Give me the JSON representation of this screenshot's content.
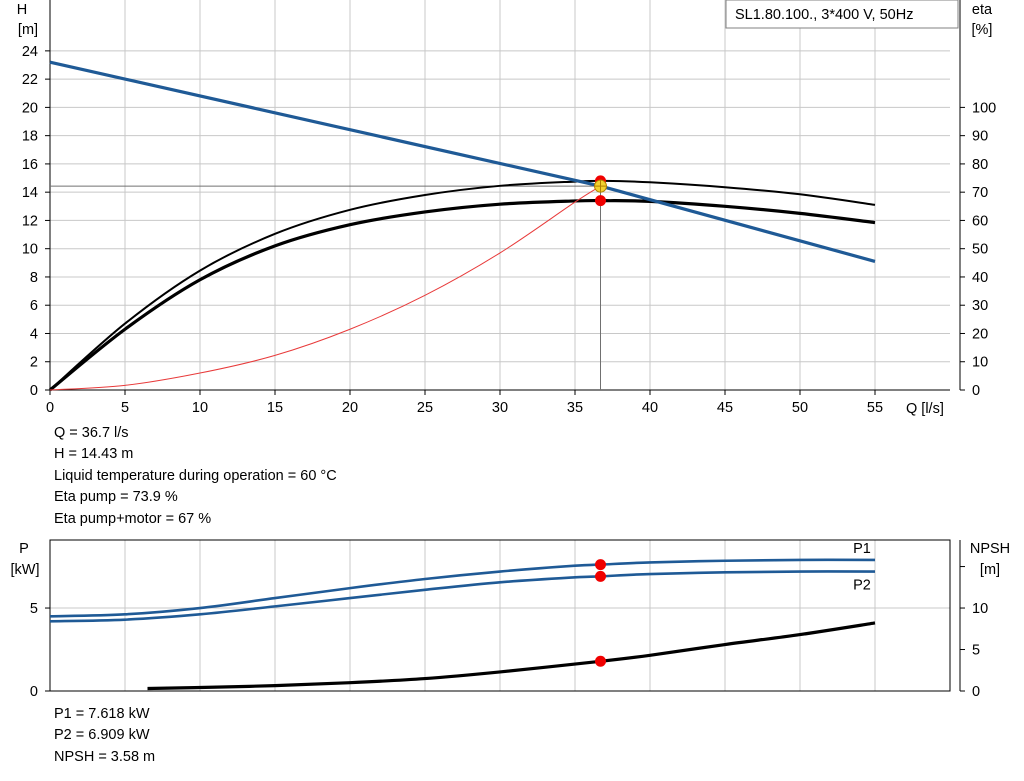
{
  "chart_data": [
    {
      "type": "line",
      "title": "SL1.80.100., 3*400 V, 50Hz",
      "xlabel": "Q [l/s]",
      "ylabel_left": [
        "H",
        "[m]"
      ],
      "ylabel_right": [
        "eta",
        "[%]"
      ],
      "x_ticks": [
        "0",
        "5",
        "10",
        "15",
        "20",
        "25",
        "30",
        "35",
        "40",
        "45",
        "50",
        "55"
      ],
      "y_left_ticks": [
        "0",
        "2",
        "4",
        "6",
        "8",
        "10",
        "12",
        "14",
        "16",
        "18",
        "20",
        "22",
        "24"
      ],
      "y_right_ticks": [
        "0",
        "10",
        "20",
        "30",
        "40",
        "50",
        "60",
        "70",
        "80",
        "90",
        "100"
      ],
      "xlim": [
        0,
        60
      ],
      "ylim_left": [
        0,
        27.6
      ],
      "ylim_right": [
        0,
        138
      ],
      "grid": true,
      "series": [
        {
          "role": "head_max",
          "color": "#000000",
          "x": [
            0,
            5,
            10,
            15,
            20,
            25,
            30,
            35,
            37,
            40,
            45,
            50,
            55
          ],
          "y": [
            0,
            4.7,
            8.45,
            11.05,
            12.75,
            13.8,
            14.45,
            14.75,
            14.8,
            14.7,
            14.35,
            13.85,
            13.1
          ]
        },
        {
          "role": "head_operating",
          "color": "#000000",
          "x": [
            0,
            5,
            10,
            15,
            20,
            25,
            30,
            35,
            37,
            40,
            45,
            50,
            55
          ],
          "y": [
            0,
            4.3,
            7.8,
            10.2,
            11.7,
            12.6,
            13.15,
            13.38,
            13.4,
            13.35,
            13.0,
            12.5,
            11.85
          ]
        },
        {
          "role": "system_curve",
          "color": "#1f5a96",
          "x": [
            0,
            36.7,
            55
          ],
          "y": [
            23.2,
            14.43,
            9.1
          ]
        },
        {
          "role": "efficiency",
          "color": "#e83a3a",
          "x": [
            0,
            5,
            10,
            15,
            20,
            25,
            30,
            35,
            36.7
          ],
          "y": [
            0,
            0.33,
            1.2,
            2.45,
            4.3,
            6.7,
            9.7,
            13.3,
            14.43
          ]
        }
      ],
      "operating_point": {
        "x": 36.7,
        "y": 14.43
      },
      "marker_points": [
        {
          "x": 36.7,
          "y": 14.8
        },
        {
          "x": 36.7,
          "y": 13.4
        }
      ]
    },
    {
      "type": "line",
      "ylabel_left": [
        "P",
        "[kW]"
      ],
      "ylabel_right": [
        "NPSH",
        "[m]"
      ],
      "y_left_ticks": [
        "0",
        "5"
      ],
      "y_right_ticks": [
        "0",
        "5",
        "10"
      ],
      "xlim": [
        0,
        60
      ],
      "ylim_left": [
        0,
        9.1
      ],
      "ylim_right": [
        0,
        18.2
      ],
      "grid": true,
      "series": [
        {
          "name": "P1",
          "color": "#1f5a96",
          "x": [
            0,
            5,
            10,
            15,
            20,
            25,
            30,
            35,
            36.7,
            40,
            45,
            50,
            55
          ],
          "y": [
            4.5,
            4.62,
            5.0,
            5.6,
            6.2,
            6.75,
            7.2,
            7.55,
            7.618,
            7.75,
            7.85,
            7.9,
            7.9
          ]
        },
        {
          "name": "P2",
          "color": "#1f5a96",
          "x": [
            0,
            5,
            10,
            15,
            20,
            25,
            30,
            35,
            36.7,
            40,
            45,
            50,
            55
          ],
          "y": [
            4.2,
            4.3,
            4.62,
            5.1,
            5.6,
            6.1,
            6.55,
            6.85,
            6.909,
            7.05,
            7.15,
            7.2,
            7.2
          ]
        },
        {
          "role": "npsh",
          "color": "#000000",
          "axis": "right",
          "x": [
            6.5,
            10,
            15,
            20,
            25,
            30,
            36.7,
            40,
            45,
            50,
            55
          ],
          "y": [
            0.3,
            0.42,
            0.65,
            1.0,
            1.5,
            2.3,
            3.58,
            4.3,
            5.6,
            6.8,
            8.2
          ]
        }
      ],
      "marker_points": [
        {
          "x": 36.7,
          "y": 7.618
        },
        {
          "x": 36.7,
          "y": 6.909
        },
        {
          "x": 36.7,
          "y": 3.58,
          "axis": "right"
        }
      ]
    }
  ],
  "readout_top": {
    "q": "Q = 36.7 l/s",
    "h": "H = 14.43 m",
    "temp": "Liquid temperature during operation = 60 °C",
    "eta_pump": "Eta pump = 73.9 %",
    "eta_total": "Eta pump+motor = 67 %"
  },
  "readout_bottom": {
    "p1": "P1 = 7.618 kW",
    "p2": "P2 = 6.909 kW",
    "npsh": "NPSH = 3.58 m"
  },
  "colors": {
    "grid": "#c8c8c8",
    "red": "#f00000",
    "blue": "#1f5a96",
    "thin_red": "#e83a3a"
  }
}
